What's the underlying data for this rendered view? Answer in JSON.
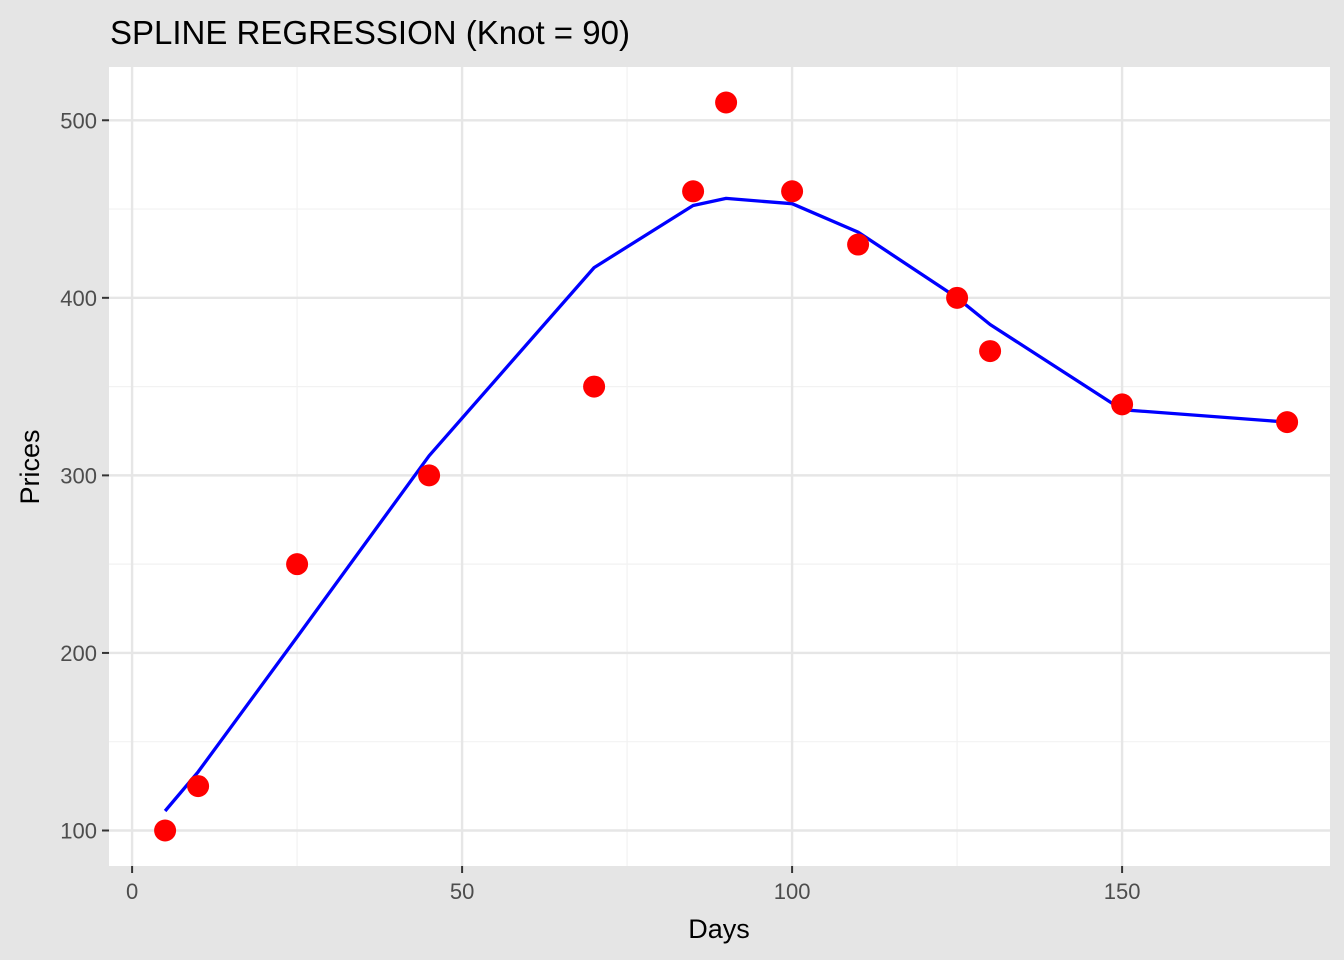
{
  "chart_data": {
    "type": "scatter",
    "title": "SPLINE REGRESSION (Knot = 90)",
    "xlabel": "Days",
    "ylabel": "Prices",
    "xlim": [
      -3.5,
      181.5
    ],
    "ylim": [
      80,
      530
    ],
    "x_ticks": [
      0,
      50,
      100,
      150
    ],
    "y_ticks": [
      100,
      200,
      300,
      400,
      500
    ],
    "x_tick_labels": [
      "0",
      "50",
      "100",
      "150"
    ],
    "y_tick_labels": [
      "100",
      "200",
      "300",
      "400",
      "500"
    ],
    "grid": true,
    "legend": "none",
    "colors": {
      "panel_background": "#ffffff",
      "plot_background": "#e5e5e5",
      "grid": "#e6e6e6",
      "points": "#ff0000",
      "line": "#0000ff",
      "tick": "#333333"
    },
    "series": [
      {
        "type": "points",
        "x": [
          5,
          10,
          25,
          45,
          70,
          85,
          90,
          100,
          110,
          125,
          130,
          150,
          175
        ],
        "y": [
          100,
          125,
          250,
          300,
          350,
          460,
          510,
          460,
          430,
          400,
          370,
          340,
          330
        ]
      },
      {
        "type": "line",
        "x": [
          5,
          10,
          25,
          45,
          70,
          85,
          90,
          100,
          110,
          125,
          130,
          150,
          175
        ],
        "y": [
          111,
          133,
          209,
          311,
          417,
          452,
          456,
          453,
          437,
          400,
          385,
          337,
          330
        ]
      }
    ]
  }
}
